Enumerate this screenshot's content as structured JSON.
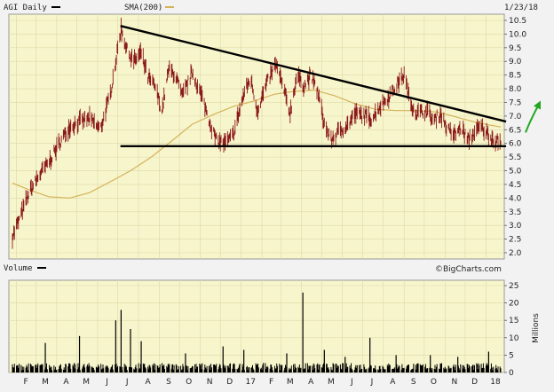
{
  "header": {
    "ticker_label": "AGI Daily",
    "sma_label": "SMA(200)",
    "date": "1/23/18"
  },
  "volume_panel": {
    "label": "Volume",
    "units_label": "Millions",
    "watermark": "©BigCharts.com"
  },
  "colors": {
    "background": "#f7f5cc",
    "grid": "#dcdaa6",
    "price": "#8b1a1a",
    "sma": "#d4b25a",
    "trendline": "#000000",
    "volume": "#000000",
    "arrow": "#22a722"
  },
  "chart_data": [
    {
      "type": "line",
      "panel": "price",
      "x_tick_labels": [
        "F",
        "M",
        "A",
        "M",
        "J",
        "J",
        "A",
        "S",
        "O",
        "N",
        "D",
        "17",
        "F",
        "M",
        "A",
        "M",
        "J",
        "J",
        "A",
        "S",
        "O",
        "N",
        "D",
        "18"
      ],
      "y_tick_labels": [
        "2.0",
        "2.5",
        "3.0",
        "3.5",
        "4.0",
        "4.5",
        "5.0",
        "5.5",
        "6.0",
        "6.5",
        "7.0",
        "7.5",
        "8.0",
        "8.5",
        "9.0",
        "9.5",
        "10.0",
        "10.5"
      ],
      "ylim": [
        2.0,
        10.5
      ],
      "grid": true,
      "x_start": "2016-01-26",
      "x_end": "2018-01-23",
      "series": [
        {
          "kind": "price",
          "points": [
            [
              "2016-01-26",
              2.6
            ],
            [
              "2016-02-05",
              3.2
            ],
            [
              "2016-02-20",
              4.2
            ],
            [
              "2016-03-05",
              4.8
            ],
            [
              "2016-03-20",
              5.3
            ],
            [
              "2016-04-05",
              6.0
            ],
            [
              "2016-04-20",
              6.6
            ],
            [
              "2016-05-05",
              6.8
            ],
            [
              "2016-05-20",
              6.9
            ],
            [
              "2016-06-05",
              6.5
            ],
            [
              "2016-06-20",
              7.8
            ],
            [
              "2016-07-06",
              10.2
            ],
            [
              "2016-07-15",
              9.4
            ],
            [
              "2016-07-25",
              9.0
            ],
            [
              "2016-08-05",
              9.3
            ],
            [
              "2016-08-15",
              8.4
            ],
            [
              "2016-08-25",
              8.1
            ],
            [
              "2016-09-05",
              7.2
            ],
            [
              "2016-09-15",
              8.7
            ],
            [
              "2016-09-25",
              8.5
            ],
            [
              "2016-10-05",
              7.7
            ],
            [
              "2016-10-20",
              8.6
            ],
            [
              "2016-11-05",
              7.6
            ],
            [
              "2016-11-15",
              6.8
            ],
            [
              "2016-11-25",
              6.1
            ],
            [
              "2016-12-10",
              6.0
            ],
            [
              "2016-12-20",
              6.3
            ],
            [
              "2017-01-05",
              7.8
            ],
            [
              "2017-01-15",
              8.4
            ],
            [
              "2017-01-25",
              7.2
            ],
            [
              "2017-02-10",
              8.3
            ],
            [
              "2017-02-22",
              8.9
            ],
            [
              "2017-03-05",
              8.0
            ],
            [
              "2017-03-15",
              7.1
            ],
            [
              "2017-03-25",
              8.5
            ],
            [
              "2017-04-05",
              8.1
            ],
            [
              "2017-04-15",
              8.5
            ],
            [
              "2017-04-25",
              7.9
            ],
            [
              "2017-05-05",
              6.7
            ],
            [
              "2017-05-15",
              6.1
            ],
            [
              "2017-05-25",
              6.4
            ],
            [
              "2017-06-10",
              6.7
            ],
            [
              "2017-06-20",
              7.1
            ],
            [
              "2017-07-05",
              7.0
            ],
            [
              "2017-07-15",
              6.9
            ],
            [
              "2017-07-25",
              7.3
            ],
            [
              "2017-08-05",
              7.6
            ],
            [
              "2017-08-15",
              7.9
            ],
            [
              "2017-08-25",
              8.3
            ],
            [
              "2017-09-01",
              8.5
            ],
            [
              "2017-09-10",
              7.5
            ],
            [
              "2017-09-20",
              7.1
            ],
            [
              "2017-10-05",
              7.2
            ],
            [
              "2017-10-15",
              6.8
            ],
            [
              "2017-10-25",
              7.1
            ],
            [
              "2017-11-05",
              6.5
            ],
            [
              "2017-11-15",
              6.3
            ],
            [
              "2017-11-25",
              6.6
            ],
            [
              "2017-12-05",
              6.1
            ],
            [
              "2017-12-15",
              6.4
            ],
            [
              "2017-12-25",
              6.6
            ],
            [
              "2018-01-05",
              6.3
            ],
            [
              "2018-01-15",
              6.1
            ],
            [
              "2018-01-23",
              6.1
            ]
          ]
        },
        {
          "kind": "sma",
          "points": [
            [
              "2016-01-26",
              4.55
            ],
            [
              "2016-02-20",
              4.3
            ],
            [
              "2016-03-20",
              4.05
            ],
            [
              "2016-04-20",
              4.0
            ],
            [
              "2016-05-20",
              4.2
            ],
            [
              "2016-06-20",
              4.6
            ],
            [
              "2016-07-20",
              5.0
            ],
            [
              "2016-08-20",
              5.5
            ],
            [
              "2016-09-20",
              6.1
            ],
            [
              "2016-10-20",
              6.7
            ],
            [
              "2016-11-20",
              7.05
            ],
            [
              "2016-12-20",
              7.35
            ],
            [
              "2017-01-20",
              7.55
            ],
            [
              "2017-02-20",
              7.8
            ],
            [
              "2017-03-20",
              7.9
            ],
            [
              "2017-04-20",
              7.95
            ],
            [
              "2017-05-20",
              7.75
            ],
            [
              "2017-06-20",
              7.45
            ],
            [
              "2017-07-20",
              7.25
            ],
            [
              "2017-08-20",
              7.2
            ],
            [
              "2017-09-20",
              7.2
            ],
            [
              "2017-10-20",
              7.15
            ],
            [
              "2017-11-20",
              6.95
            ],
            [
              "2017-12-20",
              6.75
            ],
            [
              "2018-01-23",
              6.6
            ]
          ]
        }
      ],
      "annotations": [
        {
          "kind": "trendline",
          "from": [
            "2016-07-05",
            10.3
          ],
          "to": [
            "2018-01-31",
            6.8
          ]
        },
        {
          "kind": "support",
          "from": [
            "2016-07-05",
            5.9
          ],
          "to": [
            "2018-01-31",
            5.9
          ]
        },
        {
          "kind": "arrow-up",
          "from": [
            "2018-01-29",
            6.4
          ],
          "to": [
            "2018-02-10",
            7.5
          ]
        }
      ]
    },
    {
      "type": "bar",
      "panel": "volume",
      "ylabel": "Millions",
      "y_tick_labels": [
        "0",
        "5",
        "10",
        "15",
        "20",
        "25"
      ],
      "ylim": [
        0,
        25
      ],
      "base_level": 1.6,
      "spikes": [
        [
          "2016-03-15",
          8.5
        ],
        [
          "2016-05-05",
          10.5
        ],
        [
          "2016-06-28",
          15.0
        ],
        [
          "2016-07-06",
          18.0
        ],
        [
          "2016-07-20",
          12.5
        ],
        [
          "2016-08-05",
          9.0
        ],
        [
          "2016-10-10",
          5.5
        ],
        [
          "2016-12-05",
          7.5
        ],
        [
          "2017-01-05",
          6.5
        ],
        [
          "2017-03-10",
          5.5
        ],
        [
          "2017-04-03",
          23.0
        ],
        [
          "2017-05-05",
          6.5
        ],
        [
          "2017-06-05",
          4.5
        ],
        [
          "2017-07-12",
          10.0
        ],
        [
          "2017-08-20",
          5.0
        ],
        [
          "2017-10-10",
          5.0
        ],
        [
          "2017-11-20",
          4.5
        ],
        [
          "2018-01-05",
          6.0
        ]
      ]
    }
  ]
}
